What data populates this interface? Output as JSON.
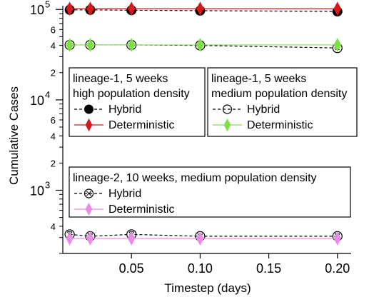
{
  "chart_data": {
    "type": "scatter",
    "xlabel": "Timestep (days)",
    "ylabel": "Cumulative Cases",
    "xlim": [
      0,
      0.21
    ],
    "ylim": [
      200,
      110000
    ],
    "y_scale": "log",
    "grid": false,
    "x_ticks": [
      {
        "value": 0.05,
        "label": "0.05"
      },
      {
        "value": 0.1,
        "label": "0.10"
      },
      {
        "value": 0.15,
        "label": "0.15"
      },
      {
        "value": 0.2,
        "label": "0.20"
      }
    ],
    "y_major_ticks": [
      {
        "value": 1000,
        "base": "10",
        "exp": "3"
      },
      {
        "value": 10000,
        "base": "10",
        "exp": "4"
      },
      {
        "value": 100000,
        "base": "10",
        "exp": "5"
      }
    ],
    "y_minor_ticks": [
      {
        "value": 400,
        "label": "4"
      },
      {
        "value": 600,
        "label": ""
      },
      {
        "value": 2000,
        "label": "2"
      },
      {
        "value": 4000,
        "label": "4"
      },
      {
        "value": 6000,
        "label": "6"
      },
      {
        "value": 20000,
        "label": "2"
      },
      {
        "value": 40000,
        "label": "4"
      },
      {
        "value": 60000,
        "label": "6"
      }
    ],
    "series": [
      {
        "id": "l1hd_hybrid",
        "marker": "filled-circle",
        "color": "#000000",
        "line": "dashed",
        "x": [
          0.005,
          0.02,
          0.05,
          0.1,
          0.2
        ],
        "y": [
          99000,
          99000,
          98000,
          97000,
          95000
        ],
        "err": [
          7000,
          7000,
          6000,
          4000,
          4000
        ]
      },
      {
        "id": "l1hd_det",
        "marker": "diamond",
        "color": "#d8191c",
        "line": "solid",
        "x": [
          0.005,
          0.02,
          0.05,
          0.1,
          0.2
        ],
        "y": [
          102000,
          102000,
          102000,
          102000,
          102000
        ],
        "err": [
          10000,
          10000,
          9000,
          7000,
          8000
        ]
      },
      {
        "id": "l1md_hybrid",
        "marker": "open-circle",
        "color": "#000000",
        "line": "dashed",
        "x": [
          0.005,
          0.02,
          0.05,
          0.1,
          0.2
        ],
        "y": [
          40500,
          40500,
          40500,
          40000,
          37500
        ],
        "err": [
          2500,
          2500,
          2500,
          2000,
          1500
        ]
      },
      {
        "id": "l1md_det",
        "marker": "diamond",
        "color": "#7ee042",
        "line": "solid",
        "x": [
          0.005,
          0.02,
          0.05,
          0.1,
          0.2
        ],
        "y": [
          40500,
          40500,
          40500,
          40500,
          40500
        ],
        "err": [
          4000,
          4000,
          3500,
          3000,
          3000
        ]
      },
      {
        "id": "l2md_hybrid",
        "marker": "open-circle-x",
        "color": "#000000",
        "line": "dashed",
        "x": [
          0.005,
          0.02,
          0.05,
          0.1,
          0.2
        ],
        "y": [
          325,
          310,
          325,
          310,
          310
        ],
        "err": [
          25,
          20,
          25,
          15,
          20
        ]
      },
      {
        "id": "l2md_det",
        "marker": "diamond",
        "color": "#e98ee5",
        "line": "solid",
        "x": [
          0.005,
          0.02,
          0.05,
          0.1,
          0.2
        ],
        "y": [
          293,
          293,
          293,
          293,
          293
        ],
        "err": [
          20,
          20,
          20,
          15,
          20
        ]
      }
    ],
    "legends": [
      {
        "id": "legend-a",
        "placement": "middle-left",
        "title_lines": [
          "lineage-1, 5 weeks",
          "high population density"
        ],
        "entries": [
          {
            "series": "l1hd_hybrid",
            "label": "Hybrid"
          },
          {
            "series": "l1hd_det",
            "label": "Deterministic"
          }
        ]
      },
      {
        "id": "legend-b",
        "placement": "middle-right",
        "title_lines": [
          "lineage-1, 5 weeks",
          "medium population density"
        ],
        "entries": [
          {
            "series": "l1md_hybrid",
            "label": "Hybrid"
          },
          {
            "series": "l1md_det",
            "label": "Deterministic"
          }
        ]
      },
      {
        "id": "legend-c",
        "placement": "lower-center",
        "title_lines": [
          "lineage-2, 10 weeks, medium population density"
        ],
        "entries": [
          {
            "series": "l2md_hybrid",
            "label": "Hybrid"
          },
          {
            "series": "l2md_det",
            "label": "Deterministic"
          }
        ]
      }
    ]
  }
}
